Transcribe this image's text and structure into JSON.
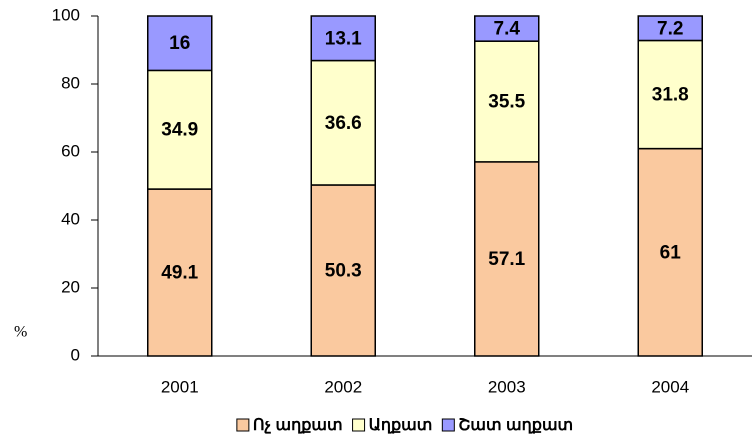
{
  "chart_data": {
    "type": "stacked_bar",
    "y_axis_label": "%",
    "categories": [
      "2001",
      "2002",
      "2003",
      "2004"
    ],
    "series": [
      {
        "name": "Ոչ աղքատ",
        "color": "#fac99f",
        "values": [
          49.1,
          50.3,
          57.1,
          61
        ]
      },
      {
        "name": "Աղքատ",
        "color": "#ffffcc",
        "values": [
          34.9,
          36.6,
          35.5,
          31.8
        ]
      },
      {
        "name": "Շատ աղքատ",
        "color": "#9999ff",
        "values": [
          16,
          13.1,
          7.4,
          7.2
        ]
      }
    ],
    "ylim": [
      0,
      100
    ],
    "yticks": [
      0,
      20,
      40,
      60,
      80,
      100
    ],
    "legend": "bottom"
  }
}
